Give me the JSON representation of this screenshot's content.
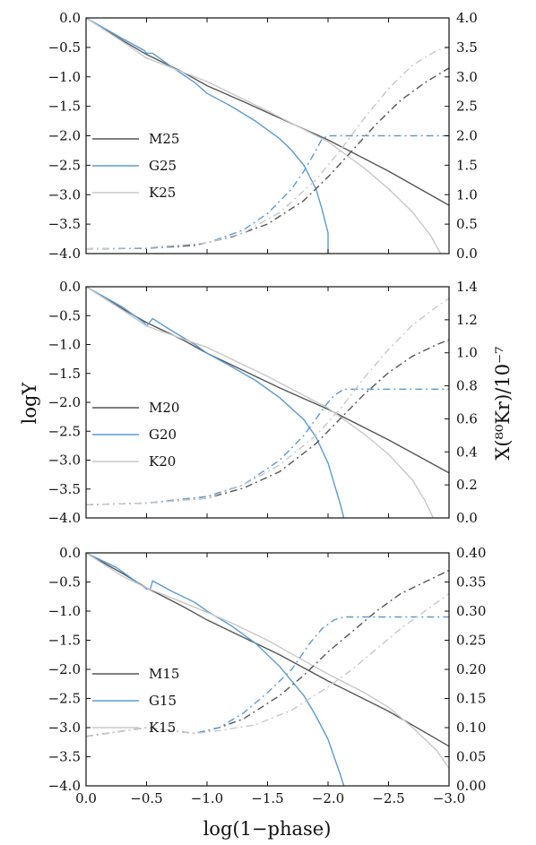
{
  "figure": {
    "ylabel_left": "logY",
    "ylabel_right": "X(⁸⁰Kr)/10⁻⁷",
    "xlabel": "log(1−phase)"
  },
  "colors": {
    "M": "#555555",
    "G": "#5a9bd4",
    "K": "#c8c8c8"
  },
  "chart_data": [
    {
      "type": "line",
      "title": "",
      "xlim": [
        0,
        -3
      ],
      "ylim_left": [
        -4,
        0
      ],
      "ylim_right": [
        0,
        4
      ],
      "xticks": [
        "0.0",
        "−0.5",
        "−1.0",
        "−1.5",
        "−2.0",
        "−2.5",
        "−3.0"
      ],
      "yticks_left": [
        "0.0",
        "−0.5",
        "−1.0",
        "−1.5",
        "−2.0",
        "−2.5",
        "−3.0",
        "−3.5",
        "−4.0"
      ],
      "yticks_right": [
        "4.0",
        "3.5",
        "3.0",
        "2.5",
        "2.0",
        "1.5",
        "1.0",
        "0.5",
        "0.0"
      ],
      "legend": [
        "M25",
        "G25",
        "K25"
      ],
      "series": [
        {
          "name": "M25",
          "axis": "left",
          "style": "solid",
          "color": "M",
          "x": [
            0,
            -0.3,
            -0.5,
            -0.8,
            -1.0,
            -1.3,
            -1.6,
            -2.0,
            -2.5,
            -3.0
          ],
          "y": [
            0,
            -0.38,
            -0.62,
            -0.92,
            -1.15,
            -1.42,
            -1.7,
            -2.07,
            -2.6,
            -3.18
          ]
        },
        {
          "name": "G25",
          "axis": "left",
          "style": "solid",
          "color": "G",
          "x": [
            0,
            -0.3,
            -0.48,
            -0.5,
            -0.55,
            -0.7,
            -0.9,
            -1.0,
            -1.2,
            -1.4,
            -1.6,
            -1.7,
            -1.8,
            -1.9,
            -1.95,
            -2.0,
            -2.0
          ],
          "y": [
            0,
            -0.35,
            -0.55,
            -0.6,
            -0.6,
            -0.82,
            -1.1,
            -1.28,
            -1.5,
            -1.75,
            -2.05,
            -2.25,
            -2.5,
            -2.9,
            -3.25,
            -3.65,
            -4.0
          ]
        },
        {
          "name": "K25",
          "axis": "left",
          "style": "solid",
          "color": "K",
          "x": [
            0,
            -0.3,
            -0.5,
            -0.8,
            -1.0,
            -1.5,
            -2.0,
            -2.3,
            -2.5,
            -2.7,
            -2.85,
            -2.93
          ],
          "y": [
            0,
            -0.4,
            -0.68,
            -0.92,
            -1.08,
            -1.58,
            -2.1,
            -2.55,
            -2.9,
            -3.3,
            -3.7,
            -4.0
          ]
        },
        {
          "name": "M25 X",
          "axis": "right",
          "style": "dashdot",
          "color": "M",
          "x": [
            0,
            -0.5,
            -0.9,
            -1.2,
            -1.5,
            -1.8,
            -2.0,
            -2.2,
            -2.4,
            -2.6,
            -2.8,
            -3.0
          ],
          "y": [
            0.08,
            0.09,
            0.14,
            0.28,
            0.5,
            0.9,
            1.3,
            1.75,
            2.2,
            2.6,
            2.9,
            3.15
          ]
        },
        {
          "name": "G25 X",
          "axis": "right",
          "style": "dashdot",
          "color": "G",
          "x": [
            0,
            -0.5,
            -1.0,
            -1.3,
            -1.5,
            -1.7,
            -1.8,
            -1.9,
            -1.95,
            -2.0,
            -2.5,
            -3.0
          ],
          "y": [
            0.08,
            0.09,
            0.18,
            0.4,
            0.68,
            1.1,
            1.4,
            1.75,
            1.95,
            2.0,
            2.0,
            2.0
          ]
        },
        {
          "name": "K25 X",
          "axis": "right",
          "style": "dashdot",
          "color": "K",
          "x": [
            0,
            -0.5,
            -1.0,
            -1.3,
            -1.6,
            -1.9,
            -2.1,
            -2.3,
            -2.5,
            -2.7,
            -2.9,
            -3.0
          ],
          "y": [
            0.08,
            0.1,
            0.18,
            0.35,
            0.7,
            1.25,
            1.75,
            2.3,
            2.8,
            3.2,
            3.45,
            3.5
          ]
        }
      ]
    },
    {
      "type": "line",
      "title": "",
      "xlim": [
        0,
        -3
      ],
      "ylim_left": [
        -4,
        0
      ],
      "ylim_right": [
        0,
        1.4
      ],
      "xticks": [
        "0.0",
        "−0.5",
        "−1.0",
        "−1.5",
        "−2.0",
        "−2.5",
        "−3.0"
      ],
      "yticks_left": [
        "0.0",
        "−0.5",
        "−1.0",
        "−1.5",
        "−2.0",
        "−2.5",
        "−3.0",
        "−3.5",
        "−4.0"
      ],
      "yticks_right": [
        "1.4",
        "1.2",
        "1.0",
        "0.8",
        "0.6",
        "0.4",
        "0.2",
        "0.0"
      ],
      "legend": [
        "M20",
        "G20",
        "K20"
      ],
      "series": [
        {
          "name": "M20",
          "axis": "left",
          "style": "solid",
          "color": "M",
          "x": [
            0,
            -0.3,
            -0.5,
            -0.8,
            -1.0,
            -1.3,
            -1.6,
            -2.0,
            -2.5,
            -3.0
          ],
          "y": [
            0,
            -0.38,
            -0.62,
            -0.92,
            -1.15,
            -1.45,
            -1.75,
            -2.12,
            -2.65,
            -3.22
          ]
        },
        {
          "name": "G20",
          "axis": "left",
          "style": "solid",
          "color": "G",
          "x": [
            0,
            -0.3,
            -0.48,
            -0.5,
            -0.55,
            -0.7,
            -0.9,
            -1.0,
            -1.2,
            -1.4,
            -1.6,
            -1.8,
            -1.9,
            -2.0,
            -2.05,
            -2.1,
            -2.13
          ],
          "y": [
            0,
            -0.35,
            -0.62,
            -0.68,
            -0.55,
            -0.75,
            -1.0,
            -1.15,
            -1.38,
            -1.62,
            -1.92,
            -2.3,
            -2.6,
            -3.05,
            -3.4,
            -3.75,
            -4.0
          ]
        },
        {
          "name": "K20",
          "axis": "left",
          "style": "solid",
          "color": "K",
          "x": [
            0,
            -0.3,
            -0.5,
            -0.8,
            -1.0,
            -1.5,
            -2.0,
            -2.3,
            -2.5,
            -2.7,
            -2.8,
            -2.87
          ],
          "y": [
            0,
            -0.4,
            -0.68,
            -0.9,
            -1.05,
            -1.55,
            -2.1,
            -2.55,
            -2.9,
            -3.35,
            -3.7,
            -4.0
          ]
        },
        {
          "name": "M20 X",
          "axis": "right",
          "style": "dashdot",
          "color": "M",
          "x": [
            0,
            -0.5,
            -1.0,
            -1.3,
            -1.6,
            -1.9,
            -2.1,
            -2.3,
            -2.5,
            -2.7,
            -2.9,
            -3.0
          ],
          "y": [
            0.08,
            0.09,
            0.12,
            0.18,
            0.28,
            0.45,
            0.6,
            0.75,
            0.88,
            0.98,
            1.05,
            1.08
          ]
        },
        {
          "name": "G20 X",
          "axis": "right",
          "style": "dashdot",
          "color": "G",
          "x": [
            0,
            -0.5,
            -1.0,
            -1.3,
            -1.6,
            -1.8,
            -1.9,
            -2.0,
            -2.05,
            -2.13,
            -2.5,
            -3.0
          ],
          "y": [
            0.08,
            0.09,
            0.13,
            0.2,
            0.35,
            0.5,
            0.6,
            0.7,
            0.74,
            0.78,
            0.78,
            0.78
          ]
        },
        {
          "name": "K20 X",
          "axis": "right",
          "style": "dashdot",
          "color": "K",
          "x": [
            0,
            -0.5,
            -1.0,
            -1.3,
            -1.6,
            -1.9,
            -2.1,
            -2.3,
            -2.5,
            -2.7,
            -2.9,
            -3.0
          ],
          "y": [
            0.08,
            0.09,
            0.12,
            0.2,
            0.32,
            0.5,
            0.66,
            0.85,
            1.02,
            1.17,
            1.28,
            1.33
          ]
        }
      ]
    },
    {
      "type": "line",
      "title": "",
      "xlim": [
        0,
        -3
      ],
      "ylim_left": [
        -4,
        0
      ],
      "ylim_right": [
        0,
        0.4
      ],
      "xticks": [
        "0.0",
        "−0.5",
        "−1.0",
        "−1.5",
        "−2.0",
        "−2.5",
        "−3.0"
      ],
      "yticks_left": [
        "0.0",
        "−0.5",
        "−1.0",
        "−1.5",
        "−2.0",
        "−2.5",
        "−3.0",
        "−3.5",
        "−4.0"
      ],
      "yticks_right": [
        "0.40",
        "0.35",
        "0.30",
        "0.25",
        "0.20",
        "0.15",
        "0.10",
        "0.05",
        "0.00"
      ],
      "legend": [
        "M15",
        "G15",
        "K15"
      ],
      "series": [
        {
          "name": "M15",
          "axis": "left",
          "style": "solid",
          "color": "M",
          "x": [
            0,
            -0.3,
            -0.5,
            -0.8,
            -1.0,
            -1.3,
            -1.6,
            -2.0,
            -2.5,
            -3.0
          ],
          "y": [
            0,
            -0.35,
            -0.6,
            -0.92,
            -1.15,
            -1.45,
            -1.75,
            -2.2,
            -2.72,
            -3.32
          ]
        },
        {
          "name": "G15",
          "axis": "left",
          "style": "solid",
          "color": "G",
          "x": [
            0,
            -0.25,
            -0.5,
            -0.53,
            -0.55,
            -0.7,
            -0.9,
            -1.0,
            -1.2,
            -1.4,
            -1.6,
            -1.8,
            -1.9,
            -2.0,
            -2.05,
            -2.1,
            -2.13
          ],
          "y": [
            0,
            -0.25,
            -0.62,
            -0.62,
            -0.48,
            -0.65,
            -0.85,
            -1.0,
            -1.25,
            -1.55,
            -1.95,
            -2.45,
            -2.8,
            -3.2,
            -3.5,
            -3.8,
            -4.0
          ]
        },
        {
          "name": "K15",
          "axis": "left",
          "style": "solid",
          "color": "K",
          "x": [
            0,
            -0.3,
            -0.5,
            -0.8,
            -1.0,
            -1.2,
            -1.5,
            -1.8,
            -2.0,
            -2.3,
            -2.5,
            -2.7,
            -2.9,
            -3.0
          ],
          "y": [
            0,
            -0.4,
            -0.6,
            -0.85,
            -1.02,
            -1.2,
            -1.5,
            -1.85,
            -2.08,
            -2.4,
            -2.65,
            -3.0,
            -3.4,
            -3.7
          ]
        },
        {
          "name": "M15 X",
          "axis": "right",
          "style": "dashdot",
          "color": "M",
          "x": [
            0,
            -0.5,
            -0.9,
            -1.1,
            -1.3,
            -1.6,
            -1.8,
            -2.0,
            -2.2,
            -2.4,
            -2.6,
            -2.8,
            -3.0
          ],
          "y": [
            0.085,
            0.1,
            0.09,
            0.1,
            0.115,
            0.155,
            0.19,
            0.23,
            0.265,
            0.3,
            0.33,
            0.35,
            0.37
          ]
        },
        {
          "name": "G15 X",
          "axis": "right",
          "style": "dashdot",
          "color": "G",
          "x": [
            0,
            -0.5,
            -0.9,
            -1.1,
            -1.3,
            -1.5,
            -1.7,
            -1.85,
            -1.95,
            -2.05,
            -2.13,
            -2.5,
            -3.0
          ],
          "y": [
            0.085,
            0.1,
            0.09,
            0.1,
            0.125,
            0.16,
            0.2,
            0.245,
            0.27,
            0.285,
            0.29,
            0.29,
            0.29
          ]
        },
        {
          "name": "K15 X",
          "axis": "right",
          "style": "dashdot",
          "color": "K",
          "x": [
            0,
            -0.5,
            -0.9,
            -1.1,
            -1.4,
            -1.7,
            -2.0,
            -2.2,
            -2.4,
            -2.6,
            -2.8,
            -3.0
          ],
          "y": [
            0.085,
            0.1,
            0.09,
            0.095,
            0.105,
            0.13,
            0.17,
            0.2,
            0.235,
            0.27,
            0.3,
            0.33
          ]
        }
      ]
    }
  ]
}
